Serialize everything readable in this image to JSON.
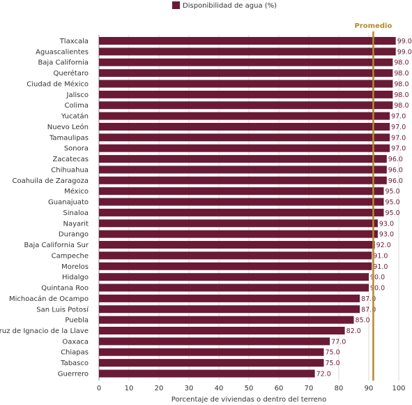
{
  "chart_data": {
    "type": "bar",
    "orientation": "horizontal",
    "legend": {
      "label": "Disponibilidad de agua (%)",
      "position": "top-center"
    },
    "series": [
      {
        "name": "Disponibilidad de agua (%)",
        "color": "#6b1a36",
        "values": [
          99.0,
          99.0,
          98.0,
          98.0,
          98.0,
          98.0,
          98.0,
          97.0,
          97.0,
          97.0,
          97.0,
          96.0,
          96.0,
          96.0,
          95.0,
          95.0,
          95.0,
          93.0,
          93.0,
          92.0,
          91.0,
          91.0,
          90.0,
          90.0,
          87.0,
          87.0,
          85.0,
          82.0,
          77.0,
          75.0,
          75.0,
          72.0
        ]
      }
    ],
    "categories": [
      "Tlaxcala",
      "Aguascalientes",
      "Baja California",
      "Querétaro",
      "Ciudad de México",
      "Jalisco",
      "Colima",
      "Yucatán",
      "Nuevo León",
      "Tamaulipas",
      "Sonora",
      "Zacatecas",
      "Chihuahua",
      "Coahuila de Zaragoza",
      "México",
      "Guanajuato",
      "Sinaloa",
      "Nayarit",
      "Durango",
      "Baja California Sur",
      "Campeche",
      "Morelos",
      "Hidalgo",
      "Quintana Roo",
      "Michoacán de Ocampo",
      "San Luis Potosí",
      "Puebla",
      "Veracruz de Ignacio de la Llave",
      "Oaxaca",
      "Chiapas",
      "Tabasco",
      "Guerrero"
    ],
    "value_labels": [
      "99.0",
      "99.0",
      "98.0",
      "98.0",
      "98.0",
      "98.0",
      "98.0",
      "97.0",
      "97.0",
      "97.0",
      "97.0",
      "96.0",
      "96.0",
      "96.0",
      "95.0",
      "95.0",
      "95.0",
      "93.0",
      "93.0",
      "92.0",
      "91.0",
      "91.0",
      "90.0",
      "90.0",
      "87.0",
      "87.0",
      "85.0",
      "82.0",
      "77.0",
      "75.0",
      "75.0",
      "72.0"
    ],
    "xlabel": "Porcentaje de viviendas o dentro del terreno",
    "ylabel": "",
    "xlim": [
      0,
      100
    ],
    "xticks": [
      0,
      10,
      20,
      30,
      40,
      50,
      60,
      70,
      80,
      90,
      100
    ],
    "xtick_labels": [
      "0",
      "10",
      "20",
      "30",
      "40",
      "50",
      "60",
      "70",
      "80",
      "90",
      "100"
    ],
    "grid": {
      "vertical": true,
      "color": "#d9d9d9"
    },
    "reference_line": {
      "label": "Promedio",
      "value": 91.5,
      "color": "#b58a2c"
    }
  }
}
